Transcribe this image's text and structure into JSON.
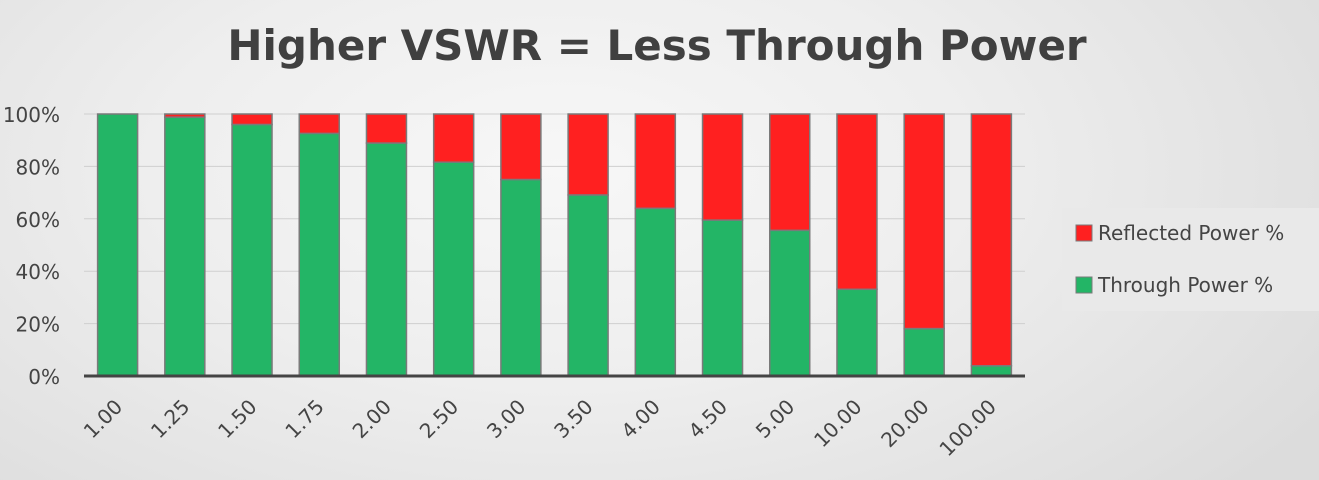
{
  "chart_data": {
    "type": "bar",
    "stacked": true,
    "title": "Higher VSWR = Less Through Power",
    "xlabel": "",
    "ylabel": "",
    "categories": [
      "1.00",
      "1.25",
      "1.50",
      "1.75",
      "2.00",
      "2.50",
      "3.00",
      "3.50",
      "4.00",
      "4.50",
      "5.00",
      "10.00",
      "20.00",
      "100.00"
    ],
    "series": [
      {
        "name": "Through Power %",
        "color": "#23b566",
        "values": [
          100,
          98.8,
          96.0,
          92.6,
          88.9,
          81.6,
          75.0,
          69.1,
          64.0,
          59.5,
          55.6,
          33.1,
          18.1,
          3.9
        ]
      },
      {
        "name": "Reflected Power %",
        "color": "#ff2020",
        "values": [
          0,
          1.2,
          4.0,
          7.4,
          11.1,
          18.4,
          25.0,
          30.9,
          36.0,
          40.5,
          44.4,
          66.9,
          81.9,
          96.1
        ]
      }
    ],
    "yticks": [
      "0%",
      "20%",
      "40%",
      "60%",
      "80%",
      "100%"
    ],
    "ylim": [
      0,
      100
    ],
    "grid": true,
    "legend": "right"
  }
}
